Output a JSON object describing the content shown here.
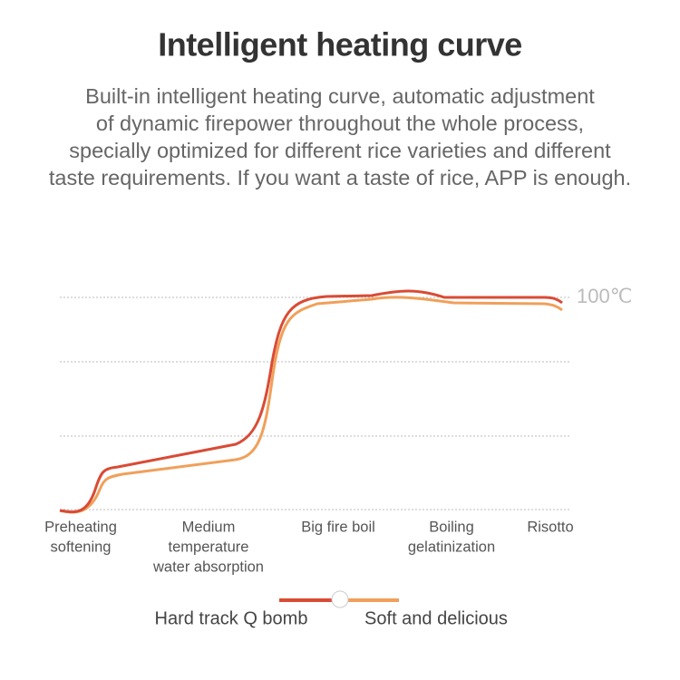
{
  "header": {
    "title": "Intelligent heating curve",
    "description": [
      "Built-in intelligent heating curve, automatic adjustment",
      "of dynamic firepower throughout the whole process,",
      "specially optimized for different rice varieties and different",
      "taste requirements. If you want a taste of rice, APP is enough."
    ]
  },
  "diagram": {
    "temperature_label": "100℃",
    "stages": [
      [
        "Preheating",
        "softening"
      ],
      [
        "Medium",
        "temperature",
        "water absorption"
      ],
      [
        "Big fire boil"
      ],
      [
        "Boiling",
        "gelatinization"
      ],
      [
        "Risotto"
      ]
    ],
    "legend": [
      "Hard track Q bomb",
      "Soft and delicious"
    ]
  }
}
